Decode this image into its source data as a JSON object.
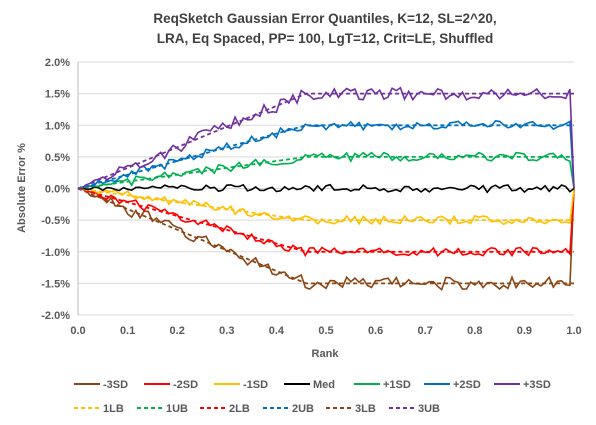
{
  "chart_data": {
    "type": "line",
    "title_lines": [
      "ReqSketch Gaussian Error Quantiles, K=12, SL=2^20,",
      "LRA, Eq Spaced, PP= 100, LgT=12, Crit=LE, Shuffled"
    ],
    "xlabel": "Rank",
    "ylabel": "Absolute Error %",
    "xlim": [
      0,
      1
    ],
    "ylim": [
      -2,
      2
    ],
    "x_ticks": [
      "0.0",
      "0.1",
      "0.2",
      "0.3",
      "0.4",
      "0.5",
      "0.6",
      "0.7",
      "0.8",
      "0.9",
      "1.0"
    ],
    "y_ticks": [
      "2.0%",
      "1.5%",
      "1.0%",
      "0.5%",
      "0.0%",
      "-0.5%",
      "-1.0%",
      "-1.5%",
      "-2.0%"
    ],
    "grid": true,
    "legend_position": "bottom",
    "series": [
      {
        "name": "-3SD",
        "color": "#8B4513",
        "style": "solid",
        "level": -1.5,
        "jitter": 0.1
      },
      {
        "name": "-2SD",
        "color": "#FF0000",
        "style": "solid",
        "level": -1.0,
        "jitter": 0.07
      },
      {
        "name": "-1SD",
        "color": "#FFC000",
        "style": "solid",
        "level": -0.5,
        "jitter": 0.07
      },
      {
        "name": "Med",
        "color": "#000000",
        "style": "solid",
        "level": 0.0,
        "jitter": 0.06
      },
      {
        "name": "+1SD",
        "color": "#00B050",
        "style": "solid",
        "level": 0.5,
        "jitter": 0.07
      },
      {
        "name": "+2SD",
        "color": "#0070C0",
        "style": "solid",
        "level": 1.0,
        "jitter": 0.07
      },
      {
        "name": "+3SD",
        "color": "#7030A0",
        "style": "solid",
        "level": 1.5,
        "jitter": 0.1
      },
      {
        "name": "1LB",
        "color": "#FFC000",
        "style": "dashed",
        "level": -0.5,
        "jitter": 0
      },
      {
        "name": "1UB",
        "color": "#00B050",
        "style": "dashed",
        "level": 0.5,
        "jitter": 0
      },
      {
        "name": "2LB",
        "color": "#FF0000",
        "style": "dashed",
        "level": -1.0,
        "jitter": 0
      },
      {
        "name": "2UB",
        "color": "#0070C0",
        "style": "dashed",
        "level": 1.0,
        "jitter": 0
      },
      {
        "name": "3LB",
        "color": "#8B4513",
        "style": "dashed",
        "level": -1.5,
        "jitter": 0
      },
      {
        "name": "3UB",
        "color": "#7030A0",
        "style": "dashed",
        "level": 1.5,
        "jitter": 0
      }
    ],
    "bound_shape": {
      "ramp_end_rank": 0.46,
      "hold_end_rank": 1.0
    }
  }
}
